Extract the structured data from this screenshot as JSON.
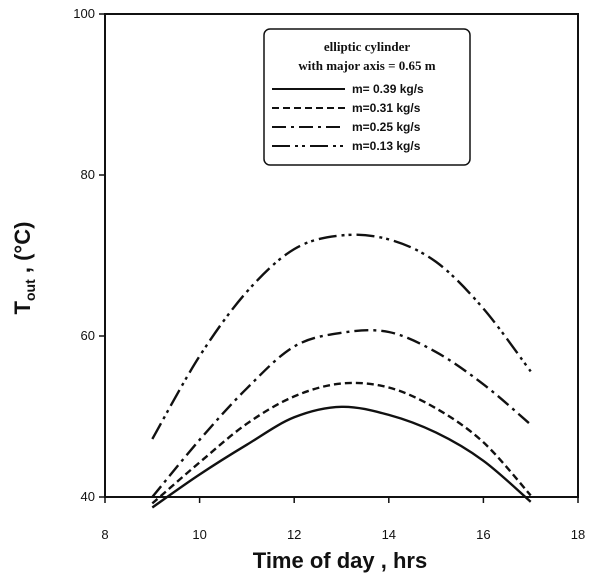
{
  "chart_data": {
    "type": "line",
    "xlabel": "Time of day , hrs",
    "ylabel": {
      "main": "T",
      "sub": "out",
      "rest": " , (°C)"
    },
    "xlim": [
      8,
      18
    ],
    "ylim": [
      40,
      100
    ],
    "xticks": [
      8,
      10,
      12,
      14,
      16,
      18
    ],
    "yticks": [
      40,
      60,
      80,
      100
    ],
    "grid": false,
    "legend_position": "top-right",
    "legend_title": [
      "elliptic cylinder",
      "with major axis = 0.65 m"
    ],
    "series": [
      {
        "name": "m= 0.39 kg/s",
        "line_style": "solid",
        "x": [
          9,
          10,
          11,
          12,
          13,
          14,
          15,
          16,
          17
        ],
        "y": [
          38.7,
          42.8,
          46.5,
          49.9,
          51.2,
          50.2,
          48.0,
          44.5,
          39.4
        ]
      },
      {
        "name": "m=0.31 kg/s",
        "line_style": "dashed",
        "x": [
          9,
          10,
          11,
          12,
          13,
          14,
          15,
          16,
          17
        ],
        "y": [
          39.2,
          44.3,
          49.1,
          52.5,
          54.1,
          53.6,
          51.0,
          46.8,
          40.2
        ]
      },
      {
        "name": "m=0.25 kg/s",
        "line_style": "dash-dot",
        "x": [
          9,
          10,
          11,
          12,
          13,
          14,
          15,
          16,
          17
        ],
        "y": [
          40.0,
          47.1,
          53.5,
          58.7,
          60.4,
          60.5,
          58.0,
          54.0,
          49.0
        ]
      },
      {
        "name": "m=0.13 kg/s",
        "line_style": "dash-dot-dot",
        "x": [
          9,
          10,
          11,
          12,
          13,
          14,
          15,
          16,
          17
        ],
        "y": [
          47.2,
          57.5,
          65.5,
          70.8,
          72.5,
          72.0,
          69.2,
          63.4,
          55.6
        ]
      }
    ],
    "colors": {
      "line": "#111111",
      "background": "#ffffff"
    }
  }
}
